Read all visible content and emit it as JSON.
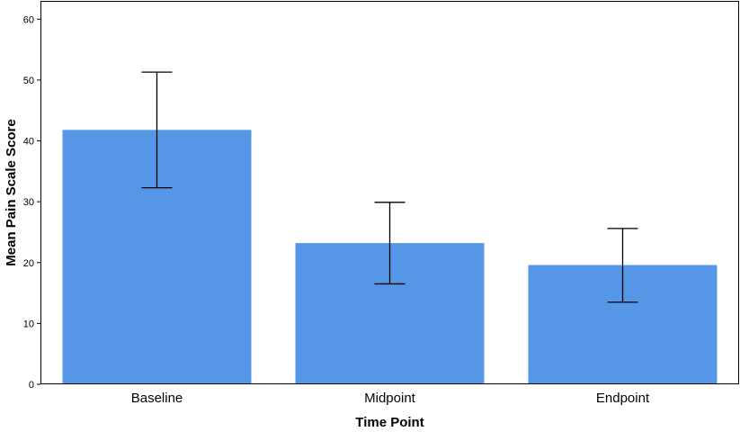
{
  "chart_data": {
    "type": "bar",
    "categories": [
      "Baseline",
      "Midpoint",
      "Endpoint"
    ],
    "values": [
      41.8,
      23.2,
      19.6
    ],
    "error_bars": {
      "lower": [
        32.3,
        16.5,
        13.5
      ],
      "upper": [
        51.3,
        29.9,
        25.6
      ]
    },
    "xlabel": "Time Point",
    "ylabel": "Mean Pain Scale Score",
    "ylim": [
      0,
      63
    ],
    "yticks": [
      0,
      10,
      20,
      30,
      40,
      50,
      60
    ],
    "grid": false,
    "legend": "none",
    "colors": {
      "bar": "#5596e6",
      "error_bar": "#000000",
      "axis": "#000000"
    }
  }
}
